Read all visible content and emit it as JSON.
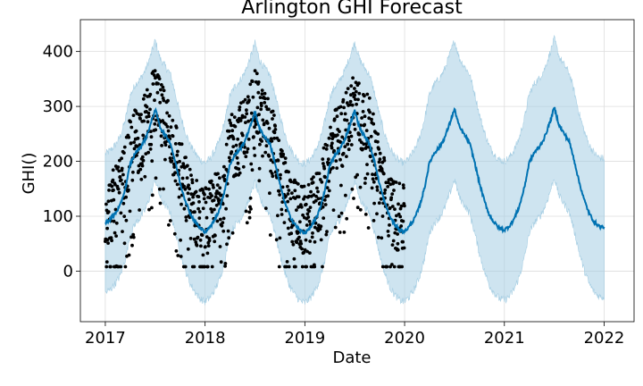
{
  "chart_data": {
    "type": "line",
    "title": "Arlington GHI Forecast",
    "xlabel": "Date",
    "ylabel": "GHI()",
    "x_ticks": [
      "2017",
      "2018",
      "2019",
      "2020",
      "2021",
      "2022"
    ],
    "y_ticks": [
      "0",
      "100",
      "200",
      "300",
      "400"
    ],
    "xlim": [
      2016.75,
      2022.3
    ],
    "ylim": [
      -92,
      458
    ],
    "grid": true,
    "series": [
      {
        "kind": "forecast-line",
        "color": "#0072B2",
        "x": [
          2017.0,
          2017.05,
          2017.1,
          2017.15,
          2017.2,
          2017.25,
          2017.3,
          2017.35,
          2017.4,
          2017.45,
          2017.5,
          2017.55,
          2017.6,
          2017.65,
          2017.7,
          2017.75,
          2017.8,
          2017.85,
          2017.9,
          2017.95,
          2018.0,
          2018.05,
          2018.1,
          2018.15,
          2018.2,
          2018.25,
          2018.3,
          2018.35,
          2018.4,
          2018.45,
          2018.5,
          2018.55,
          2018.6,
          2018.65,
          2018.7,
          2018.75,
          2018.8,
          2018.85,
          2018.9,
          2018.95,
          2019.0,
          2019.05,
          2019.1,
          2019.15,
          2019.2,
          2019.25,
          2019.3,
          2019.35,
          2019.4,
          2019.45,
          2019.5,
          2019.55,
          2019.6,
          2019.65,
          2019.7,
          2019.75,
          2019.8,
          2019.85,
          2019.9,
          2019.95,
          2020.0,
          2020.05,
          2020.1,
          2020.15,
          2020.2,
          2020.25,
          2020.3,
          2020.35,
          2020.4,
          2020.45,
          2020.5,
          2020.55,
          2020.6,
          2020.65,
          2020.7,
          2020.75,
          2020.8,
          2020.85,
          2020.9,
          2020.95,
          2021.0,
          2021.05,
          2021.1,
          2021.15,
          2021.2,
          2021.25,
          2021.3,
          2021.35,
          2021.4,
          2021.45,
          2021.5,
          2021.55,
          2021.6,
          2021.65,
          2021.7,
          2021.75,
          2021.8,
          2021.85,
          2021.9,
          2021.95,
          2022.0
        ],
        "y": [
          88,
          95,
          105,
          120,
          150,
          195,
          215,
          225,
          240,
          265,
          295,
          262,
          248,
          235,
          200,
          160,
          130,
          105,
          90,
          78,
          72,
          80,
          95,
          115,
          150,
          195,
          212,
          222,
          238,
          262,
          290,
          258,
          244,
          232,
          198,
          158,
          125,
          100,
          85,
          74,
          70,
          78,
          92,
          112,
          148,
          192,
          210,
          222,
          240,
          265,
          292,
          260,
          245,
          232,
          198,
          158,
          125,
          100,
          85,
          75,
          72,
          82,
          96,
          118,
          152,
          198,
          216,
          226,
          242,
          268,
          295,
          262,
          248,
          234,
          200,
          160,
          128,
          102,
          88,
          78,
          75,
          82,
          96,
          118,
          152,
          198,
          216,
          226,
          242,
          268,
          298,
          265,
          250,
          236,
          202,
          162,
          130,
          105,
          90,
          82,
          80
        ]
      },
      {
        "kind": "uncertainty-band",
        "color": "#A6CEE3",
        "upper_offset": 125,
        "lower_offset": 128
      },
      {
        "kind": "observed-points",
        "color": "#000000",
        "x_range": [
          2017.0,
          2020.0
        ]
      }
    ]
  }
}
